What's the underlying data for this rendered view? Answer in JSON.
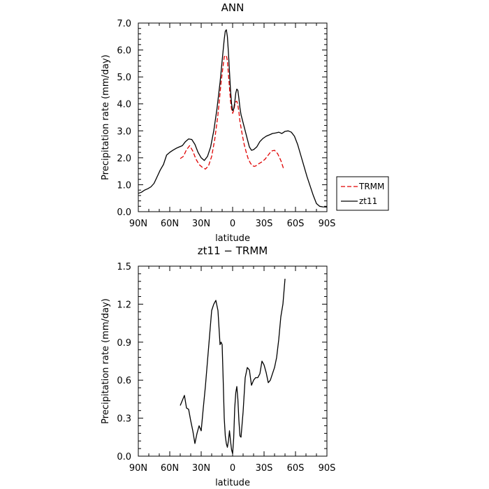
{
  "chart_data": [
    {
      "type": "line",
      "title": "ANN",
      "xlabel": "latitude",
      "ylabel": "Precipitation rate (mm/day)",
      "xlim": [
        90,
        -90
      ],
      "ylim": [
        0,
        7
      ],
      "x_ticks": [
        90,
        60,
        30,
        0,
        -30,
        -60,
        -90
      ],
      "x_tick_labels": [
        "90N",
        "60N",
        "30N",
        "0",
        "30S",
        "60S",
        "90S"
      ],
      "y_ticks": [
        0,
        1,
        2,
        3,
        4,
        5,
        6,
        7
      ],
      "y_tick_labels": [
        "0.0",
        "1.0",
        "2.0",
        "3.0",
        "4.0",
        "5.0",
        "6.0",
        "7.0"
      ],
      "legend": {
        "placement": "right-outside"
      },
      "series": [
        {
          "name": "TRMM",
          "color": "#e00000",
          "dash": "dashed",
          "x": [
            50,
            47,
            44,
            41,
            38,
            35,
            32,
            29,
            26,
            23,
            20,
            17,
            14,
            11,
            8,
            6,
            5,
            4,
            3,
            2,
            1,
            0,
            -1,
            -2,
            -3,
            -4,
            -5,
            -6,
            -7,
            -9,
            -11,
            -13,
            -15,
            -17,
            -19,
            -21,
            -23,
            -25,
            -28,
            -31,
            -34,
            -37,
            -40,
            -43,
            -46,
            -49
          ],
          "y": [
            1.97,
            2.05,
            2.3,
            2.45,
            2.25,
            1.95,
            1.75,
            1.65,
            1.58,
            1.7,
            2.05,
            2.7,
            3.6,
            4.8,
            5.75,
            5.8,
            5.6,
            5.1,
            4.6,
            4.1,
            3.8,
            3.65,
            3.75,
            3.95,
            4.08,
            4.1,
            3.95,
            3.7,
            3.35,
            2.9,
            2.5,
            2.2,
            1.95,
            1.8,
            1.7,
            1.68,
            1.72,
            1.78,
            1.85,
            1.95,
            2.1,
            2.25,
            2.28,
            2.15,
            1.9,
            1.55
          ]
        },
        {
          "name": "zt11",
          "color": "#000000",
          "dash": "solid",
          "x": [
            90,
            87,
            84,
            81,
            78,
            75,
            72,
            69,
            66,
            63,
            60,
            57,
            54,
            51,
            48,
            45,
            42,
            39,
            36,
            33,
            30,
            27,
            24,
            21,
            18,
            15,
            12,
            10,
            8,
            7,
            6,
            5,
            4,
            3,
            2,
            1,
            0,
            -1,
            -2,
            -3,
            -4,
            -5,
            -6,
            -7,
            -8,
            -10,
            -12,
            -14,
            -16,
            -18,
            -20,
            -23,
            -26,
            -29,
            -32,
            -35,
            -38,
            -41,
            -44,
            -47,
            -50,
            -53,
            -56,
            -59,
            -62,
            -65,
            -68,
            -71,
            -74,
            -77,
            -80,
            -83,
            -86,
            -90
          ],
          "y": [
            0.68,
            0.72,
            0.8,
            0.85,
            0.92,
            1.05,
            1.3,
            1.55,
            1.75,
            2.1,
            2.2,
            2.28,
            2.35,
            2.4,
            2.45,
            2.6,
            2.7,
            2.68,
            2.5,
            2.2,
            2.0,
            1.9,
            2.05,
            2.4,
            3.0,
            3.8,
            4.8,
            5.6,
            6.4,
            6.7,
            6.75,
            6.5,
            5.9,
            5.2,
            4.5,
            4.0,
            3.75,
            3.8,
            4.05,
            4.4,
            4.55,
            4.5,
            4.2,
            3.85,
            3.6,
            3.3,
            3.0,
            2.7,
            2.4,
            2.28,
            2.3,
            2.4,
            2.6,
            2.72,
            2.8,
            2.85,
            2.9,
            2.92,
            2.95,
            2.9,
            2.98,
            3.0,
            2.95,
            2.8,
            2.5,
            2.1,
            1.7,
            1.3,
            0.95,
            0.6,
            0.3,
            0.2,
            0.18,
            0.17
          ]
        }
      ]
    },
    {
      "type": "line",
      "title": "zt11 − TRMM",
      "xlabel": "latitude",
      "ylabel": "Precipitation rate (mm/day)",
      "xlim": [
        90,
        -90
      ],
      "ylim": [
        0,
        1.5
      ],
      "x_ticks": [
        90,
        60,
        30,
        0,
        -30,
        -60,
        -90
      ],
      "x_tick_labels": [
        "90N",
        "60N",
        "30N",
        "0",
        "30S",
        "60S",
        "90S"
      ],
      "y_ticks": [
        0,
        0.3,
        0.6,
        0.9,
        1.2,
        1.5
      ],
      "y_tick_labels": [
        "0.0",
        "0.3",
        "0.6",
        "0.9",
        "1.2",
        "1.5"
      ],
      "series": [
        {
          "color": "#000000",
          "dash": "solid",
          "x": [
            50,
            48,
            46,
            44,
            42,
            40,
            38,
            36,
            34,
            32,
            30,
            28,
            26,
            24,
            22,
            20,
            18,
            16,
            14,
            12,
            11,
            10,
            9,
            8,
            7,
            6,
            5,
            4,
            3,
            2,
            1,
            0,
            -1,
            -2,
            -3,
            -4,
            -5,
            -6,
            -7,
            -8,
            -10,
            -12,
            -14,
            -16,
            -18,
            -20,
            -22,
            -24,
            -26,
            -28,
            -30,
            -32,
            -34,
            -36,
            -38,
            -40,
            -42,
            -44,
            -46,
            -48,
            -50
          ],
          "y": [
            0.4,
            0.44,
            0.48,
            0.38,
            0.37,
            0.28,
            0.2,
            0.1,
            0.18,
            0.24,
            0.2,
            0.38,
            0.55,
            0.75,
            0.95,
            1.15,
            1.2,
            1.23,
            1.15,
            0.88,
            0.9,
            0.88,
            0.6,
            0.3,
            0.16,
            0.1,
            0.07,
            0.12,
            0.2,
            0.12,
            0.05,
            0.02,
            0.14,
            0.38,
            0.5,
            0.55,
            0.45,
            0.28,
            0.16,
            0.15,
            0.35,
            0.62,
            0.7,
            0.68,
            0.56,
            0.6,
            0.62,
            0.62,
            0.65,
            0.75,
            0.72,
            0.66,
            0.58,
            0.6,
            0.65,
            0.7,
            0.78,
            0.92,
            1.1,
            1.2,
            1.4
          ]
        }
      ]
    }
  ]
}
